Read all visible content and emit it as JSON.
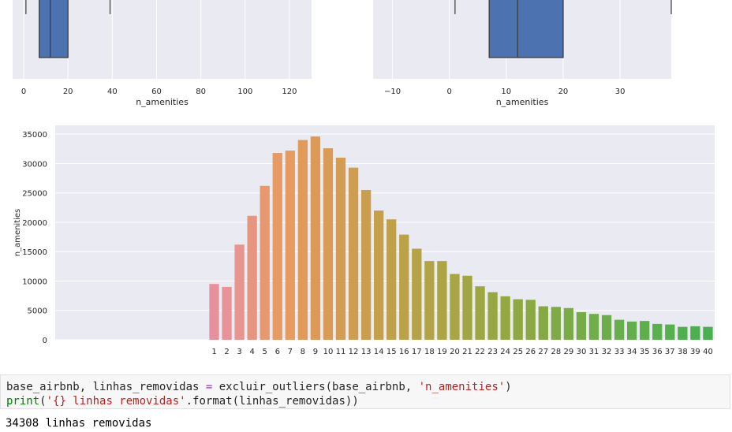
{
  "chart_data": [
    {
      "type": "box",
      "xlabel": "n_amenities",
      "xticks": [
        0,
        20,
        40,
        60,
        80,
        100,
        120
      ],
      "xlim": [
        -5,
        130
      ],
      "box": {
        "q1": 7,
        "median": 12,
        "q3": 20,
        "whisker_low": 1,
        "whisker_high": 39
      }
    },
    {
      "type": "box",
      "xlabel": "n_amenities",
      "xticks": [
        -10,
        0,
        10,
        20,
        30
      ],
      "xlim": [
        -13.4,
        39
      ],
      "box": {
        "q1": 7,
        "median": 12,
        "q3": 20,
        "whisker_low": 1,
        "whisker_high": 39
      }
    },
    {
      "type": "bar",
      "ylabel": "n_amenities",
      "yticks": [
        0,
        5000,
        10000,
        15000,
        20000,
        25000,
        30000,
        35000
      ],
      "ylim": [
        0,
        36500
      ],
      "categories": [
        "1",
        "2",
        "3",
        "4",
        "5",
        "6",
        "7",
        "8",
        "9",
        "10",
        "11",
        "12",
        "13",
        "14",
        "15",
        "16",
        "17",
        "18",
        "19",
        "20",
        "21",
        "22",
        "23",
        "24",
        "25",
        "26",
        "27",
        "28",
        "29",
        "30",
        "31",
        "32",
        "33",
        "34",
        "35",
        "36",
        "37",
        "38",
        "39",
        "40"
      ],
      "values": [
        9500,
        9000,
        16200,
        21100,
        26200,
        31800,
        32200,
        34000,
        34600,
        32600,
        31000,
        29300,
        25500,
        22000,
        20500,
        17900,
        15500,
        13400,
        13400,
        11200,
        10900,
        9100,
        8100,
        7400,
        6900,
        6800,
        5700,
        5600,
        5400,
        4700,
        4400,
        4200,
        3400,
        3100,
        3200,
        2700,
        2600,
        2200,
        2300,
        2200
      ],
      "colors": [
        "#e8919c",
        "#e89398",
        "#e8948f",
        "#e8957f",
        "#e8986f",
        "#e89a64",
        "#e89b5e",
        "#e29a59",
        "#dd9a57",
        "#d99b55",
        "#d49c52",
        "#cf9d4f",
        "#ca9e4c",
        "#c59f49",
        "#c0a048",
        "#bba147",
        "#b6a247",
        "#b1a346",
        "#aca445",
        "#a7a544",
        "#a2a543",
        "#9ea642",
        "#99a742",
        "#94a842",
        "#8fa842",
        "#8aa943",
        "#85aa44",
        "#80aa45",
        "#7bab46",
        "#76ac47",
        "#71ad48",
        "#6dad49",
        "#68ae4a",
        "#63af4b",
        "#5eaf4c",
        "#59b04d",
        "#55b04d",
        "#51b04e",
        "#4db04e",
        "#49b04f"
      ]
    }
  ],
  "code": {
    "line1_var": "base_airbnb, linhas_removidas ",
    "line1_op": "=",
    "line1_call": " excluir_outliers(base_airbnb, ",
    "line1_str": "'n_amenities'",
    "line1_end": ")",
    "line2_kw": "print",
    "line2_paren": "(",
    "line2_str": "'{} linhas removidas'",
    "line2_rest": ".format(linhas_removidas))"
  },
  "output": "34308 linhas removidas"
}
